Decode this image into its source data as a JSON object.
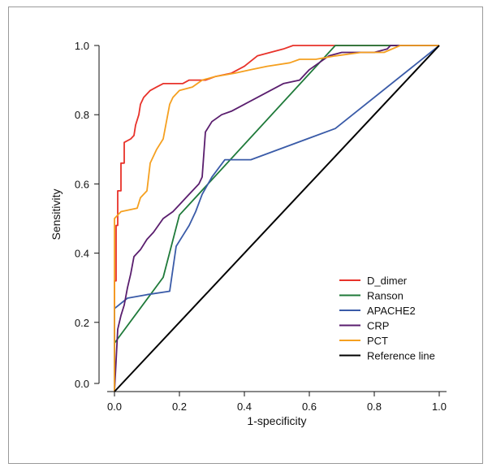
{
  "chart_data": {
    "type": "line",
    "title": "",
    "xlabel": "1-specificity",
    "ylabel": "Sensitivity",
    "xlim": [
      0,
      1
    ],
    "ylim": [
      0,
      1
    ],
    "xticks": [
      "0.0",
      "0.2",
      "0.4",
      "0.6",
      "0.8",
      "1.0"
    ],
    "yticks": [
      "0.0",
      "0.2",
      "0.4",
      "0.6",
      "0.8",
      "1.0"
    ],
    "grid": false,
    "legend_position": "bottom-right",
    "series": [
      {
        "name": "D_dimer",
        "color": "#e8322a",
        "points": [
          [
            0,
            0
          ],
          [
            0,
            0.32
          ],
          [
            0.005,
            0.32
          ],
          [
            0.005,
            0.48
          ],
          [
            0.01,
            0.48
          ],
          [
            0.01,
            0.58
          ],
          [
            0.02,
            0.58
          ],
          [
            0.02,
            0.66
          ],
          [
            0.03,
            0.66
          ],
          [
            0.03,
            0.72
          ],
          [
            0.05,
            0.73
          ],
          [
            0.06,
            0.74
          ],
          [
            0.065,
            0.77
          ],
          [
            0.075,
            0.8
          ],
          [
            0.08,
            0.83
          ],
          [
            0.09,
            0.85
          ],
          [
            0.11,
            0.87
          ],
          [
            0.13,
            0.88
          ],
          [
            0.15,
            0.89
          ],
          [
            0.21,
            0.89
          ],
          [
            0.23,
            0.9
          ],
          [
            0.28,
            0.9
          ],
          [
            0.31,
            0.91
          ],
          [
            0.36,
            0.92
          ],
          [
            0.4,
            0.94
          ],
          [
            0.44,
            0.97
          ],
          [
            0.48,
            0.98
          ],
          [
            0.52,
            0.99
          ],
          [
            0.55,
            1.0
          ],
          [
            0.77,
            1.0
          ],
          [
            1,
            1
          ]
        ]
      },
      {
        "name": "Ranson",
        "color": "#1f7a3a",
        "points": [
          [
            0,
            0
          ],
          [
            0,
            0.14
          ],
          [
            0.15,
            0.33
          ],
          [
            0.2,
            0.51
          ],
          [
            0.68,
            1.0
          ],
          [
            0.77,
            1.0
          ],
          [
            1,
            1
          ]
        ]
      },
      {
        "name": "APACHE2",
        "color": "#3a5ba8",
        "points": [
          [
            0,
            0
          ],
          [
            0,
            0.24
          ],
          [
            0.04,
            0.27
          ],
          [
            0.1,
            0.28
          ],
          [
            0.17,
            0.29
          ],
          [
            0.19,
            0.42
          ],
          [
            0.21,
            0.45
          ],
          [
            0.23,
            0.48
          ],
          [
            0.25,
            0.52
          ],
          [
            0.27,
            0.57
          ],
          [
            0.3,
            0.62
          ],
          [
            0.34,
            0.67
          ],
          [
            0.42,
            0.67
          ],
          [
            0.68,
            0.76
          ],
          [
            1,
            1
          ]
        ]
      },
      {
        "name": "CRP",
        "color": "#5a1e6e",
        "points": [
          [
            0,
            0
          ],
          [
            0.01,
            0.18
          ],
          [
            0.02,
            0.22
          ],
          [
            0.03,
            0.25
          ],
          [
            0.04,
            0.3
          ],
          [
            0.05,
            0.34
          ],
          [
            0.06,
            0.39
          ],
          [
            0.08,
            0.41
          ],
          [
            0.1,
            0.44
          ],
          [
            0.12,
            0.46
          ],
          [
            0.15,
            0.5
          ],
          [
            0.18,
            0.52
          ],
          [
            0.2,
            0.54
          ],
          [
            0.22,
            0.56
          ],
          [
            0.24,
            0.58
          ],
          [
            0.26,
            0.6
          ],
          [
            0.27,
            0.62
          ],
          [
            0.28,
            0.75
          ],
          [
            0.3,
            0.78
          ],
          [
            0.33,
            0.8
          ],
          [
            0.36,
            0.81
          ],
          [
            0.4,
            0.83
          ],
          [
            0.44,
            0.85
          ],
          [
            0.48,
            0.87
          ],
          [
            0.52,
            0.89
          ],
          [
            0.57,
            0.9
          ],
          [
            0.6,
            0.93
          ],
          [
            0.63,
            0.95
          ],
          [
            0.66,
            0.97
          ],
          [
            0.7,
            0.98
          ],
          [
            0.76,
            0.98
          ],
          [
            0.8,
            0.98
          ],
          [
            0.84,
            0.99
          ],
          [
            0.85,
            1.0
          ],
          [
            1,
            1
          ]
        ]
      },
      {
        "name": "PCT",
        "color": "#f5a020",
        "points": [
          [
            0,
            0
          ],
          [
            0,
            0.5
          ],
          [
            0.01,
            0.51
          ],
          [
            0.02,
            0.52
          ],
          [
            0.07,
            0.53
          ],
          [
            0.08,
            0.56
          ],
          [
            0.1,
            0.58
          ],
          [
            0.11,
            0.66
          ],
          [
            0.13,
            0.7
          ],
          [
            0.15,
            0.73
          ],
          [
            0.16,
            0.78
          ],
          [
            0.17,
            0.83
          ],
          [
            0.18,
            0.85
          ],
          [
            0.2,
            0.87
          ],
          [
            0.24,
            0.88
          ],
          [
            0.27,
            0.9
          ],
          [
            0.31,
            0.91
          ],
          [
            0.37,
            0.92
          ],
          [
            0.42,
            0.93
          ],
          [
            0.47,
            0.94
          ],
          [
            0.54,
            0.95
          ],
          [
            0.57,
            0.96
          ],
          [
            0.62,
            0.96
          ],
          [
            0.68,
            0.97
          ],
          [
            0.76,
            0.98
          ],
          [
            0.83,
            0.98
          ],
          [
            0.88,
            1.0
          ],
          [
            1,
            1
          ]
        ]
      },
      {
        "name": "Reference line",
        "color": "#000000",
        "points": [
          [
            0,
            0
          ],
          [
            1,
            1
          ]
        ]
      }
    ]
  }
}
